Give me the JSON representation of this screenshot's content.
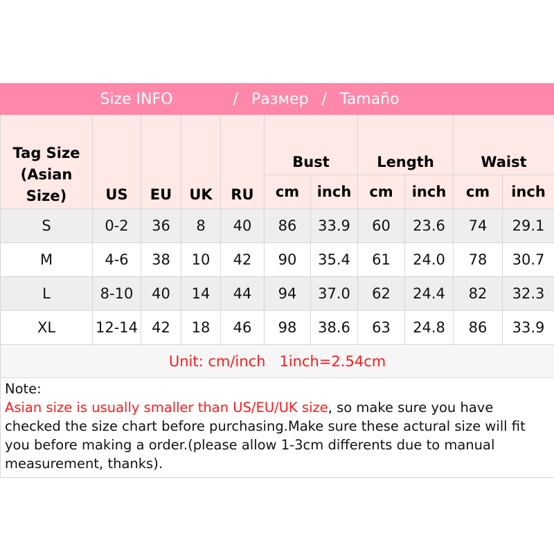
{
  "title": {
    "en": "Size INFO",
    "sep1": "/",
    "ru": "Размер",
    "sep2": "/",
    "es": "Tamaño"
  },
  "headers": {
    "tag": "Tag Size (Asian Size)",
    "us": "US",
    "eu": "EU",
    "uk": "UK",
    "ru": "RU",
    "bust": "Bust",
    "length": "Length",
    "waist": "Waist",
    "cm": "cm",
    "inch": "inch"
  },
  "rows": [
    [
      "S",
      "0-2",
      "36",
      "8",
      "40",
      "86",
      "33.9",
      "60",
      "23.6",
      "74",
      "29.1"
    ],
    [
      "M",
      "4-6",
      "38",
      "10",
      "42",
      "90",
      "35.4",
      "61",
      "24.0",
      "78",
      "30.7"
    ],
    [
      "L",
      "8-10",
      "40",
      "14",
      "44",
      "94",
      "37.0",
      "62",
      "24.4",
      "82",
      "32.3"
    ],
    [
      "XL",
      "12-14",
      "42",
      "18",
      "46",
      "98",
      "38.6",
      "63",
      "24.8",
      "86",
      "33.9"
    ]
  ],
  "unit": "Unit: cm/inch   1inch=2.54cm",
  "note": {
    "label": "Note:",
    "highlight": "Asian size is usually smaller than US/EU/UK size",
    "text": ", so make sure you have checked the size chart before purchasing.Make sure these actural size will fit you before making a order.(please allow 1-3cm differents due to manual measurement, thanks)."
  },
  "colors": {
    "header_bg": "#ff88aa",
    "subheader_bg": "#ffe9e6",
    "alert": "#ff1a1a"
  }
}
